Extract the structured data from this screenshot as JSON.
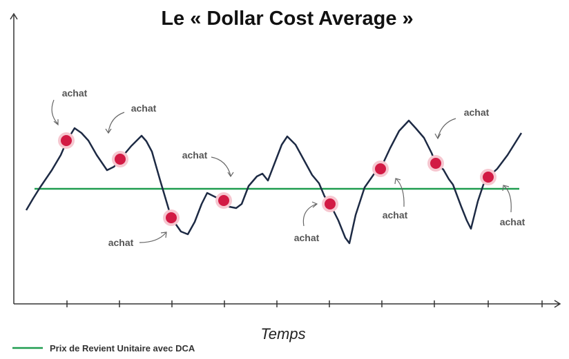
{
  "title": "Le « Dollar Cost Average »",
  "x_axis_label": "Temps",
  "legend": {
    "label": "Prix de Revient Unitaire avec DCA",
    "color": "#1e9c4f"
  },
  "annotations": [
    "achat",
    "achat",
    "achat",
    "achat",
    "achat",
    "achat",
    "achat",
    "achat"
  ]
}
